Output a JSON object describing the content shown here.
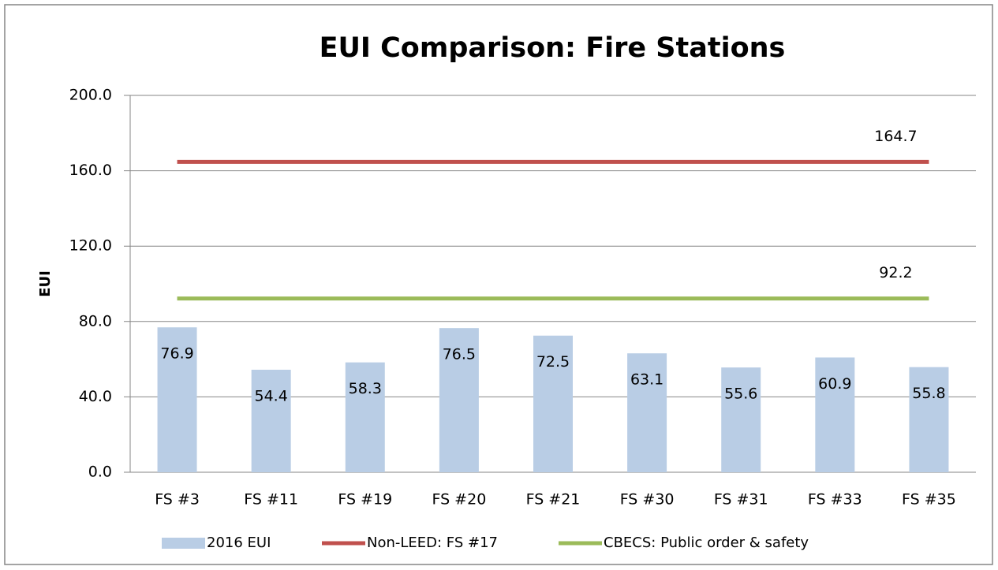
{
  "chart_data": {
    "type": "bar",
    "title": "EUI Comparison: Fire Stations",
    "y_label": "EUI",
    "categories": [
      "FS #3",
      "FS #11",
      "FS #19",
      "FS #20",
      "FS #21",
      "FS #30",
      "FS #31",
      "FS #33",
      "FS #35"
    ],
    "series": [
      {
        "name": "2016 EUI",
        "type": "bar",
        "color": "#b9cde5",
        "values": [
          76.9,
          54.4,
          58.3,
          76.5,
          72.5,
          63.1,
          55.6,
          60.9,
          55.8
        ]
      },
      {
        "name": "Non-LEED: FS #17",
        "type": "line",
        "color": "#c0504d",
        "values": [
          164.7,
          164.7,
          164.7,
          164.7,
          164.7,
          164.7,
          164.7,
          164.7,
          164.7
        ]
      },
      {
        "name": "CBECS: Public order & safety",
        "type": "line",
        "color": "#9bbb59",
        "values": [
          92.2,
          92.2,
          92.2,
          92.2,
          92.2,
          92.2,
          92.2,
          92.2,
          92.2
        ]
      }
    ],
    "ylim": [
      0,
      200
    ],
    "yticks": [
      {
        "value": 0,
        "label": "0.0"
      },
      {
        "value": 40,
        "label": "40.0"
      },
      {
        "value": 80,
        "label": "80.0"
      },
      {
        "value": 120,
        "label": "120.0"
      },
      {
        "value": 160,
        "label": "160.0"
      },
      {
        "value": 200,
        "label": "200.0"
      }
    ],
    "grid": true,
    "legend": "bottom"
  }
}
